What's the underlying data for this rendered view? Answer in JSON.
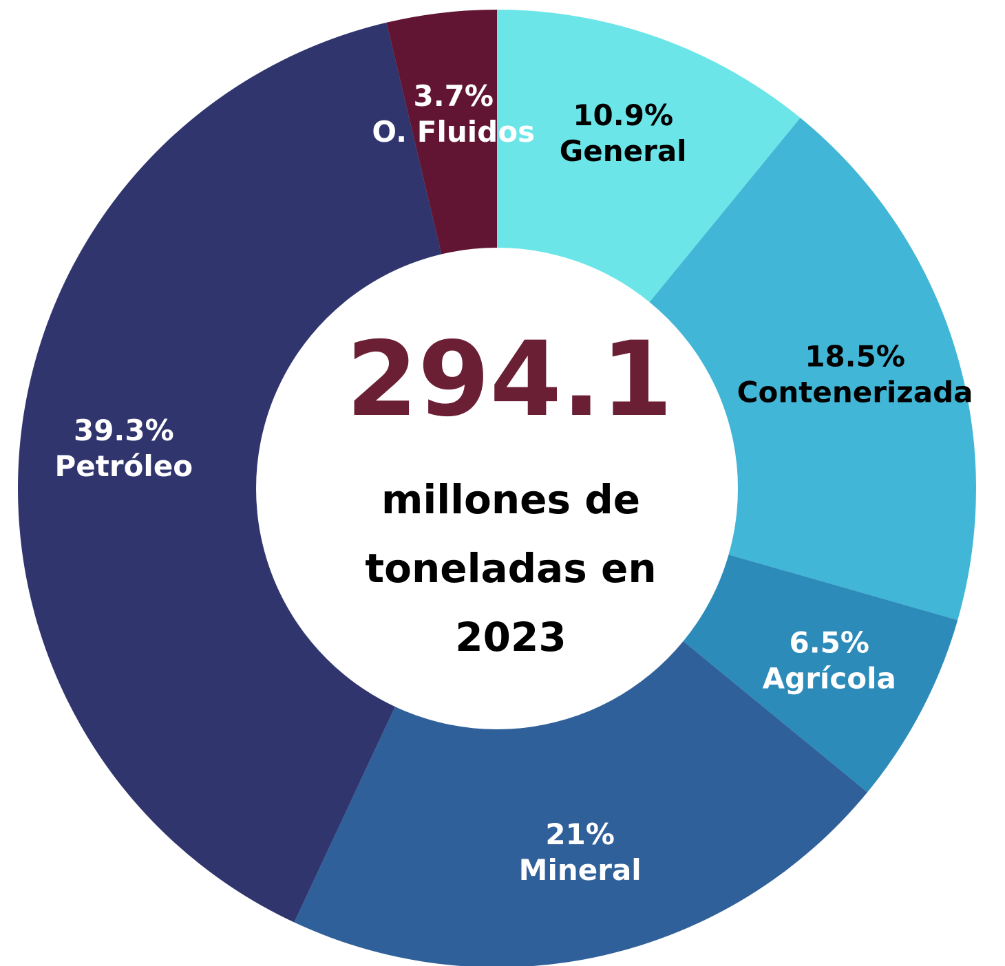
{
  "chart_data": {
    "type": "donut",
    "categories": [
      "General",
      "Contenerizada",
      "Agrícola",
      "Mineral",
      "Petróleo",
      "O. Fluidos"
    ],
    "values": [
      10.9,
      18.5,
      6.5,
      21,
      39.3,
      3.7
    ],
    "value_labels": [
      "10.9%",
      "18.5%",
      "6.5%",
      "21%",
      "39.3%",
      "3.7%"
    ],
    "colors": [
      "#6ce5e8",
      "#42b6d6",
      "#2d8bba",
      "#30609a",
      "#31356e",
      "#621532"
    ],
    "label_colors": [
      "#000000",
      "#000000",
      "#ffffff",
      "#ffffff",
      "#ffffff",
      "#ffffff"
    ],
    "center_value": "294.1",
    "center_text": [
      "millones de",
      "toneladas en",
      "2023"
    ]
  }
}
